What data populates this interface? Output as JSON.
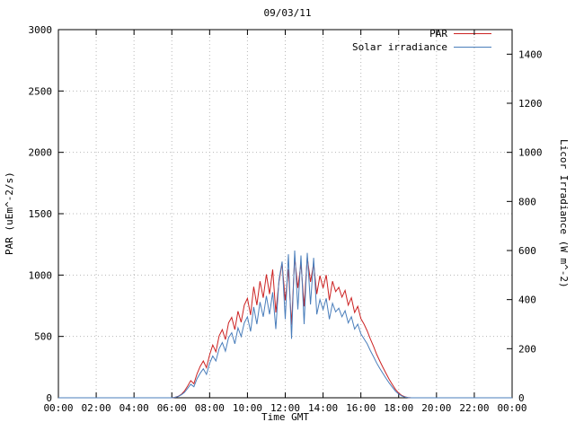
{
  "chart_data": {
    "type": "line",
    "title": "09/03/11",
    "xlabel": "Time GMT",
    "ylabel_left": "PAR (uEm^-2/s)",
    "ylabel_right": "Licor Irradiance (W m^-2)",
    "grid": true,
    "grid_color": "#b8b8b8",
    "legend_position": "top-right",
    "xlim_hours": [
      0,
      24
    ],
    "x_ticks_hours": [
      0,
      2,
      4,
      6,
      8,
      10,
      12,
      14,
      16,
      18,
      20,
      22,
      24
    ],
    "x_tick_labels": [
      "00:00",
      "02:00",
      "04:00",
      "06:00",
      "08:00",
      "10:00",
      "12:00",
      "14:00",
      "16:00",
      "18:00",
      "20:00",
      "22:00",
      "00:00"
    ],
    "ylim_left": [
      0,
      3000
    ],
    "y_ticks_left": [
      0,
      500,
      1000,
      1500,
      2000,
      2500,
      3000
    ],
    "ylim_right": [
      0,
      1500
    ],
    "y_ticks_right": [
      0,
      200,
      400,
      600,
      800,
      1000,
      1200,
      1400
    ],
    "x_start_hour": 0,
    "x_step_minutes": 10,
    "series": [
      {
        "name": "PAR",
        "axis": "left",
        "units": "uEm^-2/s",
        "color": "#cc2222",
        "values": [
          0,
          0,
          0,
          0,
          0,
          0,
          0,
          0,
          0,
          0,
          0,
          0,
          0,
          0,
          0,
          0,
          0,
          0,
          0,
          0,
          0,
          0,
          0,
          0,
          0,
          0,
          0,
          0,
          0,
          0,
          0,
          0,
          0,
          0,
          0,
          0,
          0,
          4,
          12,
          28,
          55,
          95,
          140,
          115,
          195,
          255,
          300,
          245,
          350,
          430,
          375,
          505,
          555,
          475,
          610,
          655,
          555,
          705,
          615,
          755,
          810,
          675,
          905,
          755,
          950,
          815,
          1005,
          845,
          1045,
          695,
          945,
          1095,
          795,
          1045,
          595,
          1145,
          895,
          1095,
          745,
          1145,
          945,
          1095,
          845,
          995,
          895,
          1000,
          795,
          950,
          865,
          900,
          820,
          875,
          755,
          815,
          695,
          745,
          645,
          600,
          545,
          480,
          420,
          355,
          300,
          248,
          198,
          150,
          108,
          68,
          38,
          18,
          7,
          2,
          0,
          0,
          0,
          0,
          0,
          0,
          0,
          0,
          0,
          0,
          0,
          0,
          0,
          0,
          0,
          0,
          0,
          0,
          0,
          0,
          0,
          0,
          0,
          0,
          0,
          0,
          0,
          0,
          0,
          0,
          0,
          0,
          0
        ]
      },
      {
        "name": "Solar irradiance",
        "axis": "right",
        "units": "W m^-2",
        "color": "#4a7ebb",
        "values": [
          0,
          0,
          0,
          0,
          0,
          0,
          0,
          0,
          0,
          0,
          0,
          0,
          0,
          0,
          0,
          0,
          0,
          0,
          0,
          0,
          0,
          0,
          0,
          0,
          0,
          0,
          0,
          0,
          0,
          0,
          0,
          0,
          0,
          0,
          0,
          0,
          0,
          2,
          5,
          12,
          22,
          38,
          55,
          45,
          78,
          100,
          118,
          95,
          140,
          170,
          150,
          200,
          225,
          190,
          245,
          265,
          220,
          285,
          250,
          305,
          330,
          270,
          370,
          300,
          390,
          330,
          415,
          340,
          430,
          280,
          480,
          555,
          320,
          585,
          240,
          600,
          360,
          580,
          300,
          590,
          380,
          570,
          340,
          400,
          360,
          405,
          320,
          385,
          350,
          365,
          330,
          355,
          305,
          330,
          280,
          300,
          260,
          240,
          220,
          192,
          168,
          142,
          120,
          99,
          79,
          60,
          43,
          27,
          15,
          7,
          3,
          1,
          0,
          0,
          0,
          0,
          0,
          0,
          0,
          0,
          0,
          0,
          0,
          0,
          0,
          0,
          0,
          0,
          0,
          0,
          0,
          0,
          0,
          0,
          0,
          0,
          0,
          0,
          0,
          0,
          0,
          0,
          0,
          0,
          0
        ]
      }
    ]
  }
}
